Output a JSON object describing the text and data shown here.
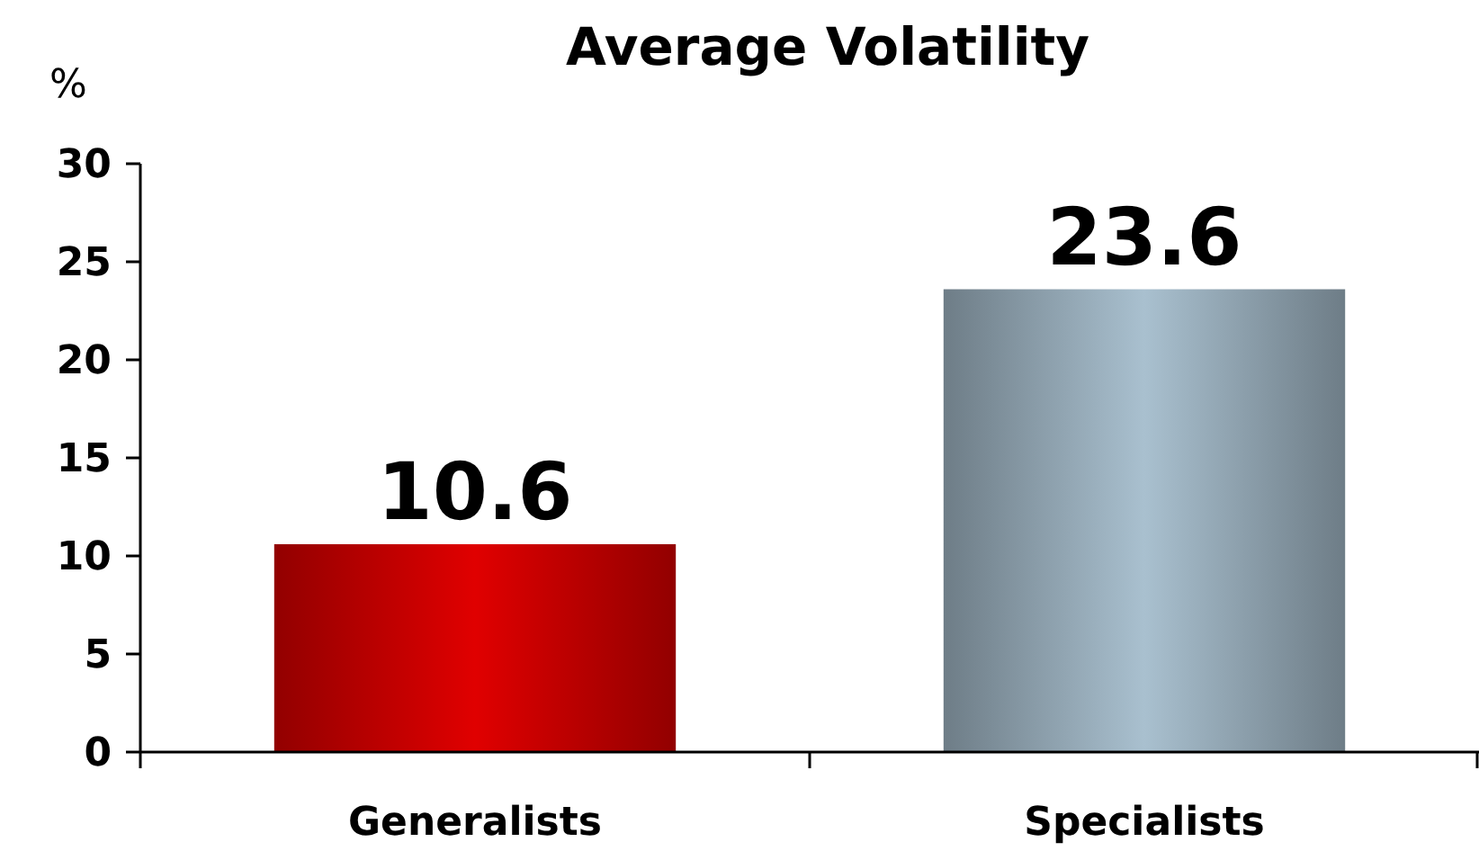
{
  "chart_data": {
    "type": "bar",
    "title": "Average Volatility",
    "ylabel": "%",
    "categories": [
      "Generalists",
      "Specialists"
    ],
    "values": [
      10.6,
      23.6
    ],
    "colors": [
      "#e00000",
      "#a9c0cf"
    ],
    "ylim": [
      0,
      30
    ],
    "yticks": [
      0,
      5,
      10,
      15,
      20,
      25,
      30
    ],
    "data_labels": true
  }
}
